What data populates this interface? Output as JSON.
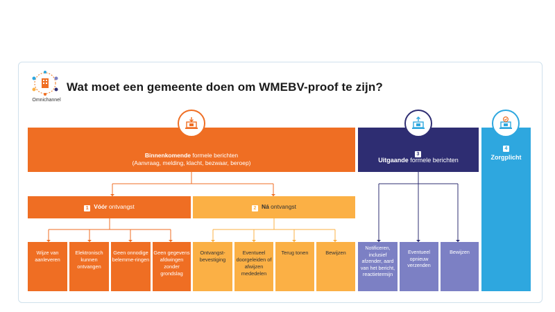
{
  "logo_label": "Omnichannel",
  "title": "Wat moet een gemeente doen om WMEBV-proof te zijn?",
  "incoming": {
    "bold": "Binnenkomende",
    "rest": " formele berichten",
    "line2": "(Aanvraag, melding, klacht, bezwaar, beroep)"
  },
  "outgoing": {
    "number": "3",
    "bold": "Uitgaande",
    "rest": " formele berichten"
  },
  "care": {
    "number": "4",
    "label": "Zorgplicht"
  },
  "before": {
    "number": "1",
    "bold": "Vóór",
    "rest": " ontvangst"
  },
  "after": {
    "number": "2",
    "bold": "Ná",
    "rest": " ontvangst"
  },
  "leaves_before": [
    "Wijze van aanleveren",
    "Elektronisch kunnen ontvangen",
    "Geen onnodige belemme-ringen",
    "Geen gegevens afdwingen zonder grondslag"
  ],
  "leaves_after": [
    "Ontvangst-bevestiging",
    "Eventueel doorgeleiden of afwijzen mededelen",
    "Terug tonen",
    "Bewijzen"
  ],
  "leaves_out": [
    "Notificeren, inclusief afzender, aard van het bericht, reactietermijn",
    "Eventueel opnieuw verzenden",
    "Bewijzen"
  ],
  "colors": {
    "orange": "#ef6e23",
    "amber": "#fbb045",
    "navy": "#2e2d72",
    "lavender": "#7c80c4",
    "blue": "#2ea7df"
  },
  "icons": {
    "incoming": "laptop-download-icon",
    "outgoing": "laptop-upload-icon",
    "care": "laptop-check-icon",
    "logo": "omnichannel-icon"
  }
}
